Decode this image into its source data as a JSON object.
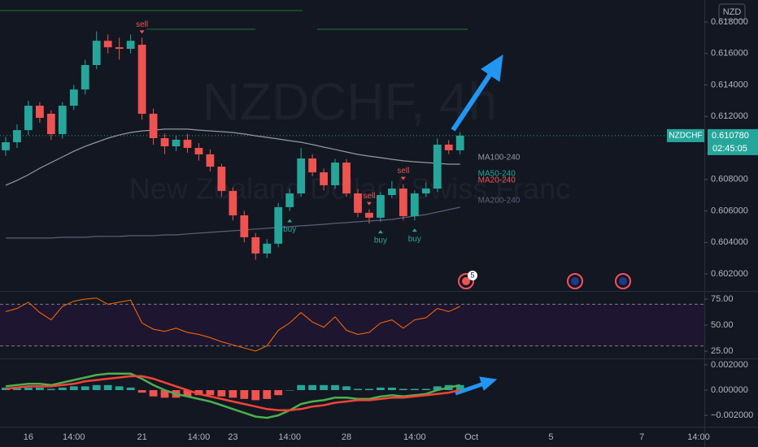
{
  "chart_data": [
    {
      "type": "candlestick",
      "symbol_badge": "NZD",
      "watermark": "NZDCHF, 4h",
      "subtitle": "New Zealand Dollar / Swiss Franc",
      "categories": [
        null,
        null,
        "16",
        null,
        null,
        null,
        "14:00",
        null,
        null,
        null,
        null,
        null,
        "21",
        null,
        null,
        null,
        null,
        "14:00",
        null,
        null,
        "23",
        null,
        null,
        null,
        null,
        "14:00",
        null,
        null,
        null,
        null,
        "28",
        null,
        null,
        null,
        null,
        null,
        "14:00",
        null,
        null,
        null,
        null,
        "Oct",
        null,
        null,
        null,
        null,
        null,
        null,
        "5",
        null,
        null,
        null,
        null,
        null,
        null,
        null,
        "7",
        null,
        null,
        null,
        null,
        "14:00"
      ],
      "open": [
        0.60985,
        0.61036,
        0.61113,
        0.61268,
        0.61217,
        0.61088,
        0.61268,
        0.61371,
        0.61526,
        0.6168,
        0.61639,
        0.61629,
        0.61655,
        0.61217,
        0.61062,
        0.6101,
        0.61052,
        0.61,
        0.60959,
        0.60881,
        0.60727,
        0.60572,
        0.60433,
        0.6033,
        0.60392,
        0.60624,
        0.60711,
        0.60933,
        0.60845,
        0.60763,
        0.60907,
        0.60711,
        0.60588,
        0.60557,
        0.60701,
        0.60742,
        0.60567,
        0.60711,
        0.60742,
        0.61021,
        0.60985,
        null,
        null,
        null,
        null,
        null,
        null,
        null,
        null,
        null,
        null,
        null,
        null,
        null,
        null,
        null,
        null,
        null,
        null,
        null,
        null,
        null
      ],
      "high": [
        0.6107,
        0.6115,
        0.613,
        0.6129,
        0.6124,
        0.6129,
        0.614,
        0.6156,
        0.6174,
        0.6172,
        0.617,
        0.6172,
        0.617,
        0.6125,
        0.6109,
        0.6108,
        0.6109,
        0.6103,
        0.6099,
        0.609,
        0.6075,
        0.606,
        0.6046,
        0.6042,
        0.6065,
        0.6074,
        0.61,
        0.6096,
        0.6087,
        0.6093,
        0.6093,
        0.6074,
        0.6061,
        0.6072,
        0.6079,
        0.6077,
        0.6073,
        0.6078,
        0.6106,
        0.6105,
        0.611,
        null,
        null,
        null,
        null,
        null,
        null,
        null,
        null,
        null,
        null,
        null,
        null,
        null,
        null,
        null,
        null,
        null,
        null,
        null,
        null,
        null
      ],
      "low": [
        0.6095,
        0.61,
        0.6108,
        0.6116,
        0.6105,
        0.6106,
        0.6124,
        0.6134,
        0.615,
        0.616,
        0.6156,
        0.616,
        0.6118,
        0.6102,
        0.6096,
        0.6098,
        0.6097,
        0.6092,
        0.6085,
        0.6069,
        0.6054,
        0.604,
        0.6029,
        0.603,
        0.6037,
        0.606,
        0.6069,
        0.6082,
        0.6073,
        0.6074,
        0.6069,
        0.6056,
        0.6052,
        0.6053,
        0.6068,
        0.6054,
        0.6054,
        0.6069,
        0.6072,
        0.6096,
        0.6096,
        null,
        null,
        null,
        null,
        null,
        null,
        null,
        null,
        null,
        null,
        null,
        null,
        null,
        null,
        null,
        null,
        null,
        null,
        null,
        null,
        null
      ],
      "close": [
        0.61036,
        0.61113,
        0.61268,
        0.61191,
        0.61088,
        0.61268,
        0.61371,
        0.61526,
        0.6168,
        0.61639,
        0.61629,
        0.6168,
        0.61217,
        0.61062,
        0.6101,
        0.61052,
        0.61,
        0.60959,
        0.60881,
        0.60727,
        0.60572,
        0.60433,
        0.6033,
        0.60392,
        0.60624,
        0.60711,
        0.60933,
        0.60845,
        0.60763,
        0.60907,
        0.60711,
        0.60588,
        0.60557,
        0.60701,
        0.60742,
        0.60567,
        0.60711,
        0.60742,
        0.61021,
        0.60985,
        0.61078,
        null,
        null,
        null,
        null,
        null,
        null,
        null,
        null,
        null,
        null,
        null,
        null,
        null,
        null,
        null,
        null,
        null,
        null,
        null,
        null,
        null
      ],
      "up_color": "#26a69a",
      "down_color": "#ef5350",
      "series": [
        {
          "name": "MA100-240",
          "color": "#9598a1",
          "values": [
            0.60763,
            0.60794,
            0.6083,
            0.60871,
            0.60907,
            0.60943,
            0.60979,
            0.6101,
            0.61036,
            0.61062,
            0.61082,
            0.61098,
            0.61108,
            0.61113,
            0.61119,
            0.61119,
            0.61119,
            0.61113,
            0.61108,
            0.61103,
            0.61098,
            0.61088,
            0.61077,
            0.61067,
            0.61057,
            0.61046,
            0.61036,
            0.61021,
            0.61005,
            0.6099,
            0.60974,
            0.60959,
            0.60948,
            0.60938,
            0.60928,
            0.60918,
            0.60912,
            0.60907,
            0.60902,
            0.60897,
            0.60897,
            null,
            null,
            null,
            null,
            null,
            null,
            null,
            null,
            null,
            null,
            null,
            null,
            null,
            null,
            null,
            null,
            null,
            null,
            null,
            null,
            null
          ]
        },
        {
          "name": "MA200-240",
          "color": "#5b5f7a",
          "values": [
            0.60428,
            0.60428,
            0.60428,
            0.60428,
            0.60428,
            0.60433,
            0.60433,
            0.60433,
            0.60438,
            0.60438,
            0.60438,
            0.60443,
            0.60443,
            0.60443,
            0.60448,
            0.60448,
            0.60454,
            0.60459,
            0.60464,
            0.60469,
            0.60474,
            0.60479,
            0.60485,
            0.6049,
            0.60495,
            0.605,
            0.60505,
            0.6051,
            0.60515,
            0.60521,
            0.60526,
            0.60531,
            0.60536,
            0.60541,
            0.60546,
            0.60557,
            0.60567,
            0.60577,
            0.60593,
            0.60608,
            0.60624,
            null,
            null,
            null,
            null,
            null,
            null,
            null,
            null,
            null,
            null,
            null,
            null,
            null,
            null,
            null,
            null,
            null,
            null,
            null,
            null,
            null
          ]
        }
      ],
      "indicator_labels": [
        {
          "text": "MA50-240",
          "color": "#26a69a"
        },
        {
          "text": "MA20-240",
          "color": "#ef5350"
        }
      ],
      "signals": [
        null,
        null,
        null,
        null,
        null,
        null,
        null,
        null,
        null,
        null,
        null,
        null,
        "sell",
        null,
        null,
        null,
        null,
        null,
        null,
        null,
        null,
        null,
        null,
        null,
        null,
        "buy",
        null,
        null,
        null,
        null,
        null,
        null,
        "sell",
        "buy",
        null,
        "sell",
        "buy",
        null,
        null,
        null,
        null,
        null,
        null,
        null,
        null,
        null,
        null,
        null,
        null,
        null,
        null,
        null,
        null,
        null,
        null,
        null,
        null,
        null,
        null,
        null,
        null,
        null
      ],
      "last_price": {
        "symbol": "NZDCHF",
        "value": 0.61078,
        "label": "0.610780",
        "countdown": "02:45:05"
      },
      "event_count": "5",
      "ylim": [
        0.60092,
        0.61939
      ],
      "yticks": [
        {
          "value": 0.602,
          "label": "0.602000"
        },
        {
          "value": 0.604,
          "label": "0.604000"
        },
        {
          "value": 0.606,
          "label": "0.606000"
        },
        {
          "value": 0.608,
          "label": "0.608000"
        },
        {
          "value": 0.612,
          "label": "0.612000"
        },
        {
          "value": 0.614,
          "label": "0.614000"
        },
        {
          "value": 0.616,
          "label": "0.616000"
        },
        {
          "value": 0.618,
          "label": "0.618000"
        }
      ]
    },
    {
      "type": "line",
      "color": "#ff6d00",
      "band_color": "#1e1530",
      "values": [
        63,
        66,
        72,
        62,
        55,
        68,
        73,
        75,
        76,
        70,
        72,
        74,
        52,
        46,
        44,
        47,
        43,
        41,
        38,
        34,
        31,
        28,
        25,
        30,
        45,
        52,
        62,
        53,
        48,
        58,
        45,
        41,
        43,
        52,
        55,
        47,
        55,
        57,
        66,
        63,
        68,
        null,
        null,
        null,
        null,
        null,
        null,
        null,
        null,
        null,
        null,
        null,
        null,
        null,
        null,
        null,
        null,
        null,
        null,
        null,
        null,
        null
      ],
      "bands": [
        70,
        30
      ],
      "ylim": [
        18.75,
        81.25
      ],
      "yticks": [
        {
          "value": 25,
          "label": "25.00"
        },
        {
          "value": 50,
          "label": "50.00"
        },
        {
          "value": 75,
          "label": "75.00"
        }
      ]
    },
    {
      "type": "macd",
      "macd_color": "#4caf50",
      "signal_color": "#f44336",
      "macd": [
        0.0003,
        0.0004,
        0.0005,
        0.0005,
        0.0004,
        0.0006,
        0.0008,
        0.001,
        0.0012,
        0.0013,
        0.0013,
        0.0013,
        0.0009,
        0.0004,
        0,
        -0.0003,
        -0.0005,
        -0.0007,
        -0.0009,
        -0.0012,
        -0.0015,
        -0.0018,
        -0.0021,
        -0.0022,
        -0.002,
        -0.0016,
        -0.0011,
        -0.0009,
        -0.0008,
        -0.0006,
        -0.0006,
        -0.0007,
        -0.0007,
        -0.0005,
        -0.0004,
        -0.0005,
        -0.0004,
        -0.0003,
        0,
        0.0002,
        0.0004,
        null,
        null,
        null,
        null,
        null,
        null,
        null,
        null,
        null,
        null,
        null,
        null,
        null,
        null,
        null,
        null,
        null,
        null,
        null,
        null,
        null
      ],
      "signal": [
        0.0001,
        0.0002,
        0.0003,
        0.0003,
        0.0003,
        0.0004,
        0.0005,
        0.0007,
        0.0008,
        0.0009,
        0.001,
        0.0011,
        0.0011,
        0.0009,
        0.0006,
        0.0003,
        0,
        -0.0003,
        -0.0005,
        -0.0007,
        -0.0009,
        -0.0011,
        -0.0013,
        -0.0015,
        -0.0016,
        -0.0016,
        -0.0015,
        -0.0013,
        -0.0012,
        -0.001,
        -0.0009,
        -0.0008,
        -0.0008,
        -0.0007,
        -0.0006,
        -0.0006,
        -0.0005,
        -0.0004,
        -0.0003,
        -0.0002,
        0,
        null,
        null,
        null,
        null,
        null,
        null,
        null,
        null,
        null,
        null,
        null,
        null,
        null,
        null,
        null,
        null,
        null,
        null,
        null,
        null,
        null
      ],
      "histogram": [
        0.0002,
        0.0002,
        0.0002,
        0.0002,
        0.0001,
        0.0002,
        0.0003,
        0.0003,
        0.0004,
        0.0004,
        0.0003,
        0.0002,
        -0.0002,
        -0.0005,
        -0.0006,
        -0.0006,
        -0.0005,
        -0.0004,
        -0.0004,
        -0.0005,
        -0.0006,
        -0.0007,
        -0.0008,
        -0.0007,
        -0.0004,
        0,
        0.0004,
        0.0004,
        0.0004,
        0.0004,
        0.0003,
        0.0001,
        0.0001,
        0.0002,
        0.0002,
        0.0001,
        0.0001,
        0.0001,
        0.0003,
        0.0004,
        0.0004,
        null,
        null,
        null,
        null,
        null,
        null,
        null,
        null,
        null,
        null,
        null,
        null,
        null,
        null,
        null,
        null,
        null,
        null,
        null,
        null,
        null
      ],
      "ylim": [
        -0.0029,
        0.00245
      ],
      "yticks": [
        {
          "value": -0.002,
          "label": "−0.002000"
        },
        {
          "value": 0,
          "label": "0.000000"
        },
        {
          "value": 0.002,
          "label": "0.002000"
        }
      ]
    }
  ]
}
